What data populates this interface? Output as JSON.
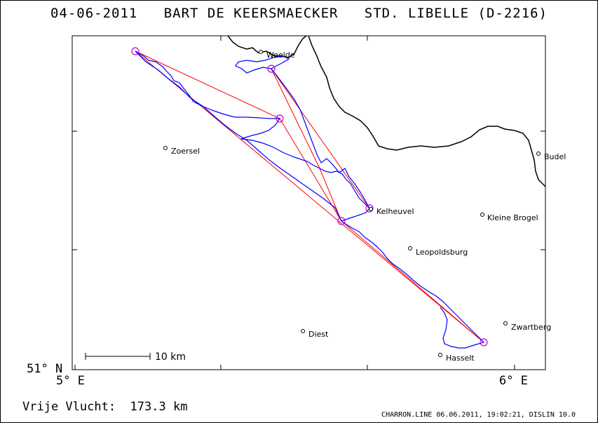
{
  "header": {
    "date": "04-06-2011",
    "pilot": "BART DE KEERSMAECKER",
    "glider": "STD. LIBELLE (D-2216)"
  },
  "axes": {
    "y_label": "51° N",
    "x_labels": [
      "5° E",
      "6° E"
    ]
  },
  "scale_bar": {
    "label": "10 km"
  },
  "places": [
    {
      "name": "Weelde"
    },
    {
      "name": "Zoersel"
    },
    {
      "name": "Budel"
    },
    {
      "name": "Kelheuvel"
    },
    {
      "name": "Kleine Brogel"
    },
    {
      "name": "Leopoldsburg"
    },
    {
      "name": "Zwartberg"
    },
    {
      "name": "Diest"
    },
    {
      "name": "Hasselt"
    }
  ],
  "colors": {
    "track": "#0000ff",
    "task": "#ff0000",
    "turnpoint": "#cc00cc",
    "border": "#000000"
  },
  "result": {
    "label": "Vrije Vlucht:",
    "value": "173.3 km"
  },
  "footer": {
    "text": "CHARRON.LINE 06.06.2011, 19:02:21, DISLIN 10.0"
  }
}
